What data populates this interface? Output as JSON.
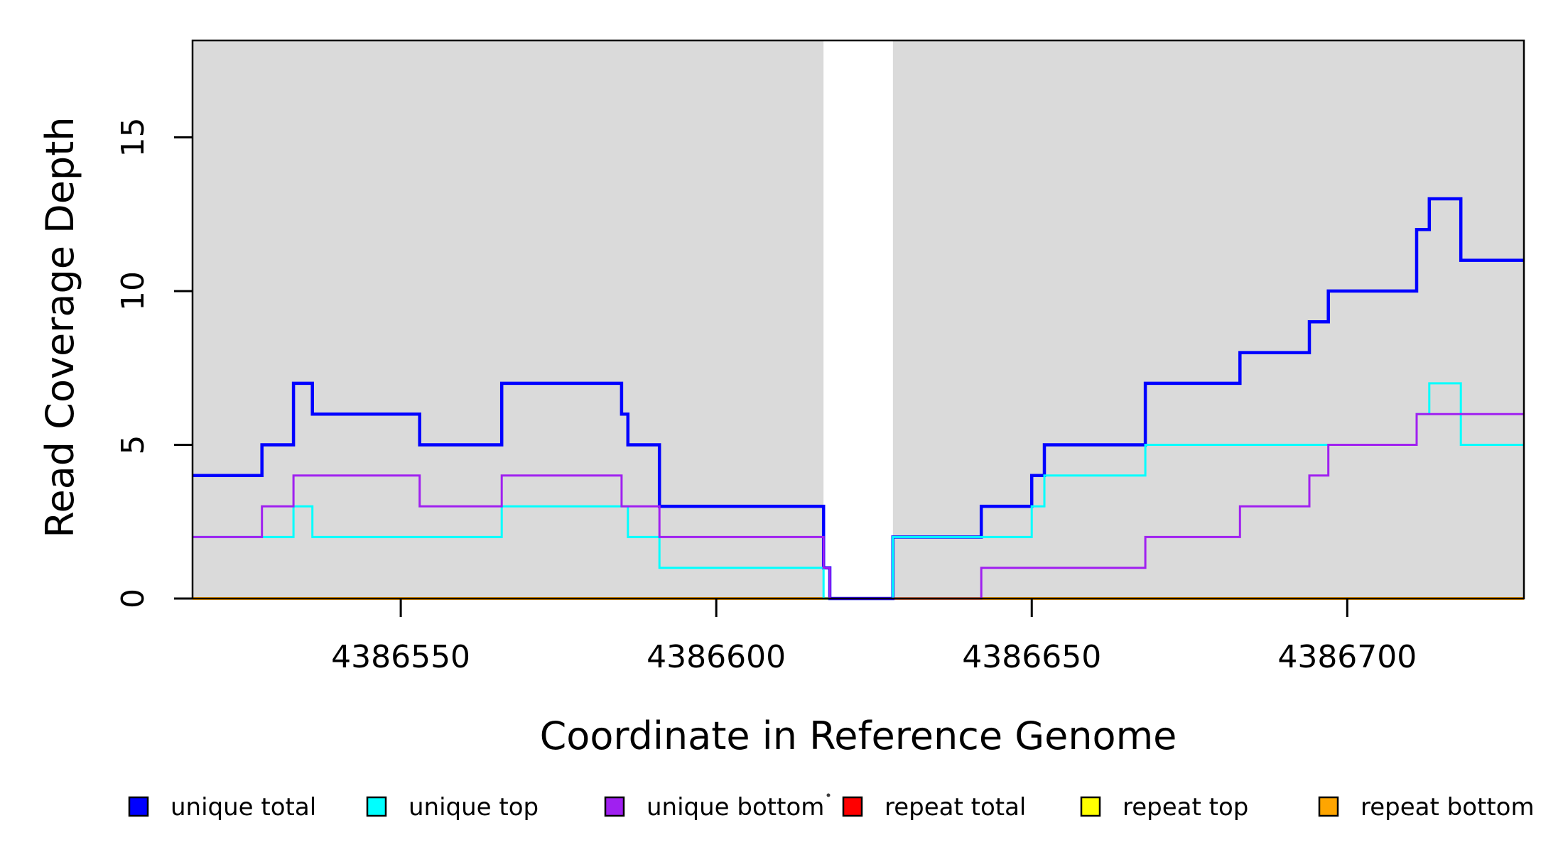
{
  "chart_data": {
    "type": "line",
    "subtype": "step",
    "title": "",
    "xlabel": "Coordinate in Reference Genome",
    "ylabel": "Read Coverage Depth",
    "xlim": [
      4386517,
      4386728
    ],
    "ylim": [
      0,
      18.15
    ],
    "xticks": [
      4386550,
      4386600,
      4386650,
      4386700
    ],
    "yticks": [
      0,
      5,
      10,
      15
    ],
    "grid": false,
    "legend_position": "bottom",
    "plot_bg": "#ffffff",
    "shaded_region_color": "#DADADA",
    "background_regions": [
      {
        "x0": 4386517,
        "x1": 4386617
      },
      {
        "x0": 4386628,
        "x1": 4386728
      }
    ],
    "draw_order": [
      "repeat total",
      "repeat top",
      "repeat bottom",
      "unique total",
      "unique top",
      "unique bottom"
    ],
    "series": [
      {
        "name": "unique total",
        "color": "#0000FF",
        "lwd": 4.5,
        "points": [
          [
            4386517,
            4
          ],
          [
            4386528,
            5
          ],
          [
            4386533,
            7
          ],
          [
            4386536,
            6
          ],
          [
            4386553,
            5
          ],
          [
            4386566,
            7
          ],
          [
            4386585,
            6
          ],
          [
            4386586,
            5
          ],
          [
            4386591,
            3
          ],
          [
            4386617,
            1
          ],
          [
            4386618,
            0
          ],
          [
            4386628,
            2
          ],
          [
            4386642,
            3
          ],
          [
            4386650,
            4
          ],
          [
            4386652,
            5
          ],
          [
            4386668,
            7
          ],
          [
            4386683,
            8
          ],
          [
            4386694,
            9
          ],
          [
            4386697,
            10
          ],
          [
            4386711,
            12
          ],
          [
            4386713,
            13
          ],
          [
            4386718,
            11
          ]
        ]
      },
      {
        "name": "unique top",
        "color": "#00FFFF",
        "lwd": 3,
        "points": [
          [
            4386517,
            2
          ],
          [
            4386533,
            3
          ],
          [
            4386536,
            2
          ],
          [
            4386566,
            3
          ],
          [
            4386586,
            2
          ],
          [
            4386591,
            1
          ],
          [
            4386617,
            0
          ],
          [
            4386628,
            2
          ],
          [
            4386650,
            3
          ],
          [
            4386652,
            4
          ],
          [
            4386668,
            5
          ],
          [
            4386711,
            6
          ],
          [
            4386713,
            7
          ],
          [
            4386718,
            5
          ]
        ]
      },
      {
        "name": "unique bottom",
        "color": "#A020F0",
        "lwd": 3,
        "points": [
          [
            4386517,
            2
          ],
          [
            4386528,
            3
          ],
          [
            4386533,
            4
          ],
          [
            4386553,
            3
          ],
          [
            4386566,
            4
          ],
          [
            4386585,
            3
          ],
          [
            4386591,
            2
          ],
          [
            4386617,
            1
          ],
          [
            4386618,
            0
          ],
          [
            4386642,
            1
          ],
          [
            4386668,
            2
          ],
          [
            4386683,
            3
          ],
          [
            4386694,
            4
          ],
          [
            4386697,
            5
          ],
          [
            4386711,
            6
          ]
        ]
      },
      {
        "name": "repeat total",
        "color": "#FF0000",
        "lwd": 3,
        "points": [
          [
            4386517,
            0
          ]
        ]
      },
      {
        "name": "repeat top",
        "color": "#FFFF00",
        "lwd": 3,
        "points": [
          [
            4386517,
            0
          ]
        ]
      },
      {
        "name": "repeat bottom",
        "color": "#FFA500",
        "lwd": 4,
        "points": [
          [
            4386517,
            0
          ]
        ]
      }
    ],
    "legend": [
      {
        "label": "unique total",
        "color": "#0000FF"
      },
      {
        "label": "unique top",
        "color": "#00FFFF"
      },
      {
        "label": "unique bottom",
        "color": "#A020F0"
      },
      {
        "label": "repeat total",
        "color": "#FF0000"
      },
      {
        "label": "repeat top",
        "color": "#FFFF00"
      },
      {
        "label": "repeat bottom",
        "color": "#FFA500"
      }
    ],
    "swatch_border_color": "#000000",
    "axis_color": "#000000"
  }
}
